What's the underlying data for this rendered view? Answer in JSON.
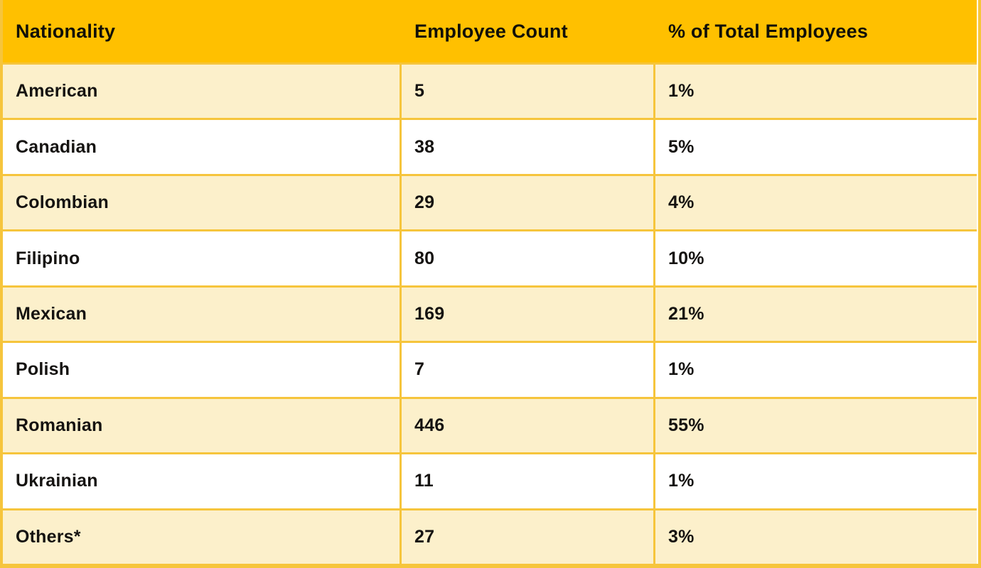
{
  "colors": {
    "header_background": "#FFC000",
    "row_stripe_background": "#FCF0CB",
    "row_background": "#FFFFFF",
    "grid_border": "#F6C53C",
    "text": "#151311"
  },
  "chart_data": {
    "type": "table",
    "title": "",
    "columns": [
      "Nationality",
      "Employee Count",
      "% of Total Employees"
    ],
    "rows": [
      [
        "American",
        "5",
        "1%"
      ],
      [
        "Canadian",
        "38",
        "5%"
      ],
      [
        "Colombian",
        "29",
        "4%"
      ],
      [
        "Filipino",
        "80",
        "10%"
      ],
      [
        "Mexican",
        "169",
        "21%"
      ],
      [
        "Polish",
        "7",
        "1%"
      ],
      [
        "Romanian",
        "446",
        "55%"
      ],
      [
        "Ukrainian",
        "11",
        "1%"
      ],
      [
        "Others*",
        "27",
        "3%"
      ]
    ]
  }
}
